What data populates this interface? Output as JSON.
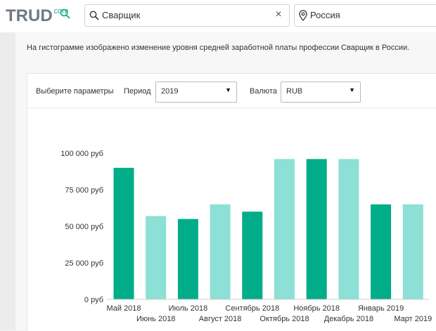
{
  "header": {
    "logo_main": "TRUD",
    "logo_com": "com",
    "search": {
      "value": "Сварщик",
      "clear": "×"
    },
    "location": {
      "value": "Россия"
    }
  },
  "description": "На гистограмме изображено изменение уровня средней заработной платы профессии Сварщик в России.",
  "params": {
    "title": "Выберите параметры",
    "period_label": "Период",
    "period_value": "2019",
    "currency_label": "Валюта",
    "currency_value": "RUB"
  },
  "colors": {
    "dark_bar": "#00ad88",
    "light_bar": "#8ce0d5",
    "accent": "#20b08a"
  },
  "chart_data": {
    "type": "bar",
    "categories": [
      "Май 2018",
      "Июнь 2018",
      "Июль 2018",
      "Август 2018",
      "Сентябрь 2018",
      "Октябрь 2018",
      "Ноябрь 2018",
      "Декабрь 2018",
      "Январь 2019",
      "Март 2019"
    ],
    "values": [
      90000,
      57000,
      55000,
      65000,
      60000,
      96000,
      96000,
      96000,
      65000,
      65000
    ],
    "ylim": [
      0,
      100000
    ],
    "yticks": [
      0,
      25000,
      50000,
      75000,
      100000
    ],
    "ytick_labels": [
      "0 руб",
      "25 000 руб",
      "50 000 руб",
      "75 000 руб",
      "100 000 руб"
    ],
    "bar_shades": [
      "dark",
      "light",
      "dark",
      "light",
      "dark",
      "light",
      "dark",
      "light",
      "dark",
      "light"
    ],
    "grid": false,
    "legend": "none"
  }
}
